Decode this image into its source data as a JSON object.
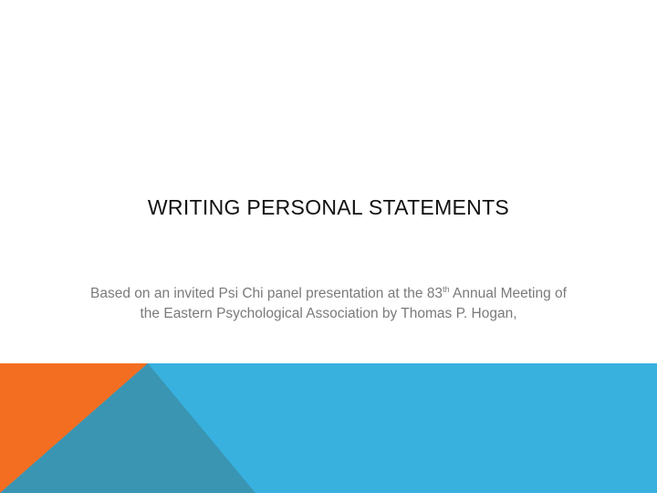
{
  "slide": {
    "title": "WRITING  PERSONAL STATEMENTS",
    "subtitle": {
      "line1_before_ordinal": "Based on an invited Psi Chi panel presentation at the 83",
      "ordinal_suffix": "th",
      "line1_after_ordinal": " Annual Meeting of",
      "line2": "the Eastern Psychological Association by Thomas P. Hogan,"
    }
  },
  "colors": {
    "background": "#ffffff",
    "title_text": "#111111",
    "subtitle_text": "#7a7a7a",
    "banner_blue": "#38b1df",
    "banner_orange": "#f36e21",
    "banner_teal": "#3a95b3"
  }
}
